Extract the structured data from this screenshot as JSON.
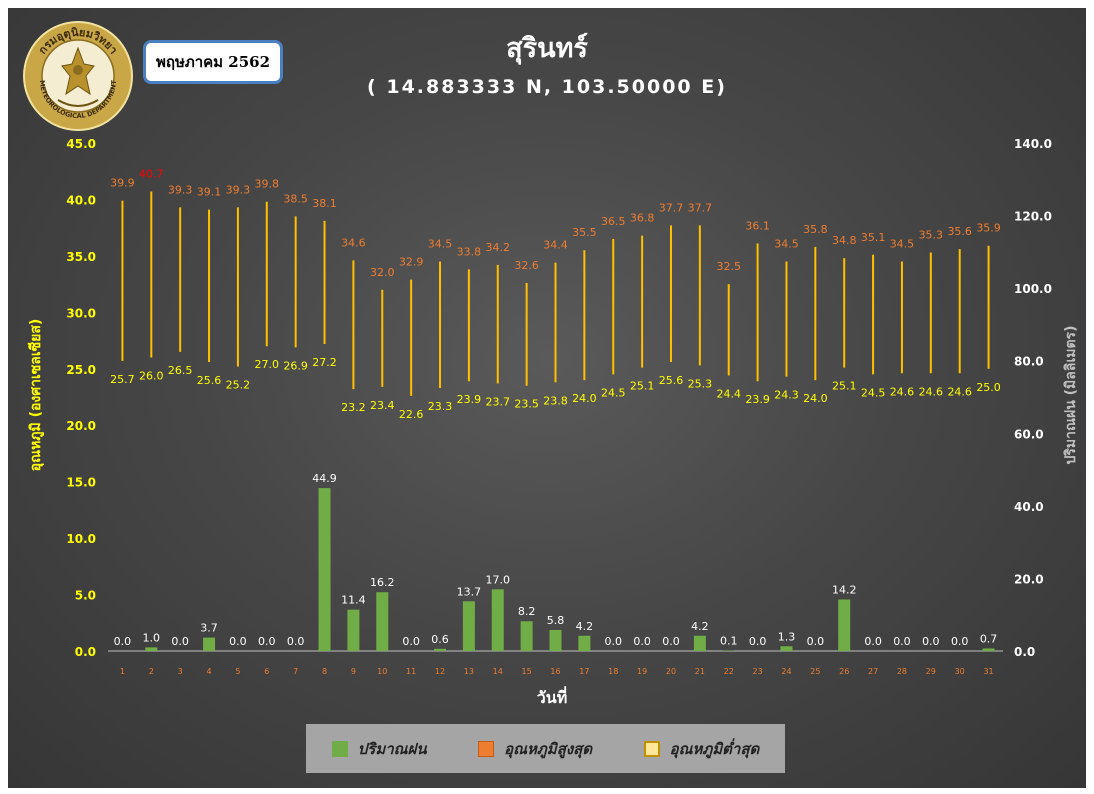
{
  "header": {
    "month_label": "พฤษภาคม 2562",
    "station_name": "สุรินทร์",
    "coordinates": "( 14.883333 N, 103.50000 E)",
    "logo_text_top": "กรมอุตุนิยมวิทยา",
    "logo_text_bottom": "METEOROLOGICAL DEPARTMENT"
  },
  "colors": {
    "rain": "#70ad47",
    "tmax_label": "#ed7d31",
    "tmax_label_highlight": "#ff0000",
    "tmin_label": "#ffff00",
    "range_bar": "#ffc000",
    "left_axis": "#ffff00",
    "right_axis": "#ffffff",
    "x_tick": "#ed7d31",
    "xlabel": "#ffffff"
  },
  "chart_data": {
    "type": "bar",
    "xlabel": "วันที่",
    "ylabel_left": "อุณหภูมิ (องศาเซลเซียส)",
    "ylabel_right": "ปริมาณฝน (มิลลิเมตร)",
    "left_ylim": [
      0,
      45
    ],
    "left_ticks": [
      "0.0",
      "5.0",
      "10.0",
      "15.0",
      "20.0",
      "25.0",
      "30.0",
      "35.0",
      "40.0",
      "45.0"
    ],
    "right_ylim": [
      0,
      140
    ],
    "right_ticks": [
      "0.0",
      "20.0",
      "40.0",
      "60.0",
      "80.0",
      "100.0",
      "120.0",
      "140.0"
    ],
    "grid": false,
    "legend_position": "bottom",
    "categories": [
      "1",
      "2",
      "3",
      "4",
      "5",
      "6",
      "7",
      "8",
      "9",
      "10",
      "11",
      "12",
      "13",
      "14",
      "15",
      "16",
      "17",
      "18",
      "19",
      "20",
      "21",
      "22",
      "23",
      "24",
      "25",
      "26",
      "27",
      "28",
      "29",
      "30",
      "31"
    ],
    "series": [
      {
        "name": "ปริมาณฝน",
        "type": "bar",
        "axis": "right",
        "values": [
          0.0,
          1.0,
          0.0,
          3.7,
          0.0,
          0.0,
          0.0,
          44.9,
          11.4,
          16.2,
          0.0,
          0.6,
          13.7,
          17.0,
          8.2,
          5.8,
          4.2,
          0.0,
          0.0,
          0.0,
          4.2,
          0.1,
          0.0,
          1.3,
          0.0,
          14.2,
          0.0,
          0.0,
          0.0,
          0.0,
          0.7
        ]
      },
      {
        "name": "อุณหภูมิสูงสุด",
        "type": "range-top",
        "axis": "left",
        "values": [
          39.9,
          40.7,
          39.3,
          39.1,
          39.3,
          39.8,
          38.5,
          38.1,
          34.6,
          32.0,
          32.9,
          34.5,
          33.8,
          34.2,
          32.6,
          34.4,
          35.5,
          36.5,
          36.8,
          37.7,
          37.7,
          32.5,
          36.1,
          34.5,
          35.8,
          34.8,
          35.1,
          34.5,
          35.3,
          35.6,
          35.9
        ]
      },
      {
        "name": "อุณหภูมิต่ำสุด",
        "type": "range-bottom",
        "axis": "left",
        "values": [
          25.7,
          26.0,
          26.5,
          25.6,
          25.2,
          27.0,
          26.9,
          27.2,
          23.2,
          23.4,
          22.6,
          23.3,
          23.9,
          23.7,
          23.5,
          23.8,
          24.0,
          24.5,
          25.1,
          25.6,
          25.3,
          24.4,
          23.9,
          24.3,
          24.0,
          25.1,
          24.5,
          24.6,
          24.6,
          24.6,
          25.0
        ]
      }
    ],
    "highlight_max_index": 1
  },
  "legend": {
    "rain": "ปริมาณฝน",
    "tmax": "อุณหภูมิสูงสุด",
    "tmin": "อุณหภูมิต่ำสุด"
  }
}
